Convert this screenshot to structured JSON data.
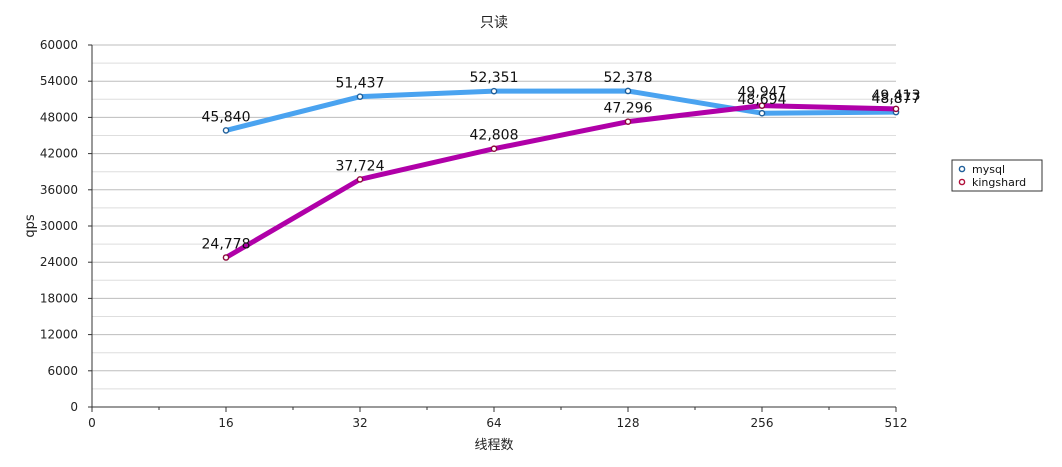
{
  "chart_data": {
    "type": "line",
    "title": "只读",
    "xlabel": "线程数",
    "ylabel": "qps",
    "x": [
      16,
      32,
      64,
      128,
      256,
      512
    ],
    "x_ticks": [
      "0",
      "16",
      "32",
      "64",
      "128",
      "256",
      "512"
    ],
    "ylim": [
      0,
      60000
    ],
    "y_ticks": [
      "0",
      "6000",
      "12000",
      "18000",
      "24000",
      "30000",
      "36000",
      "42000",
      "48000",
      "54000",
      "60000"
    ],
    "grid": true,
    "legend": "right",
    "series": [
      {
        "name": "mysql",
        "color": "#4aa3f0",
        "values": [
          45840,
          51437,
          52351,
          52378,
          48694,
          48877
        ],
        "labels": [
          "45,840",
          "51,437",
          "52,351",
          "52,378",
          "48,694",
          "48,877"
        ]
      },
      {
        "name": "kingshard",
        "color": "#b000a8",
        "values": [
          24778,
          37724,
          42808,
          47296,
          49947,
          49413
        ],
        "labels": [
          "24,778",
          "37,724",
          "42,808",
          "47,296",
          "49,947",
          "49,413"
        ]
      }
    ]
  }
}
